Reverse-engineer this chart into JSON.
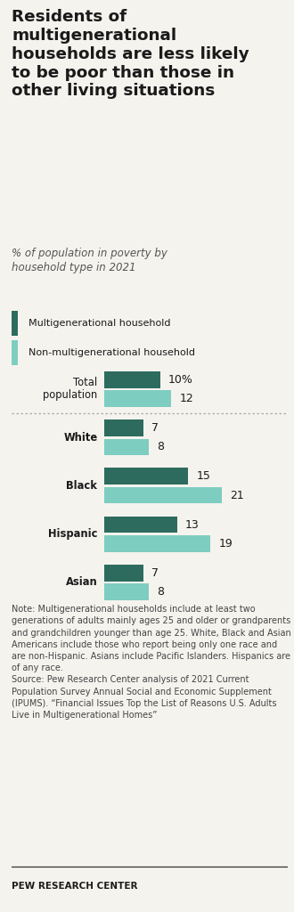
{
  "title": "Residents of\nmultigenerational\nhouseholds are less likely\nto be poor than those in\nother living situations",
  "subtitle": "% of population in poverty by\nhousehold type in 2021",
  "legend": [
    "Multigenerational household",
    "Non-multigenerational household"
  ],
  "color_multi": "#2d6b5e",
  "color_nonmulti": "#7ecdc1",
  "categories": [
    "Total\npopulation",
    "White",
    "Black",
    "Hispanic",
    "Asian"
  ],
  "multi_values": [
    10,
    7,
    15,
    13,
    7
  ],
  "nonmulti_values": [
    12,
    8,
    21,
    19,
    8
  ],
  "note_text": "Note: Multigenerational households include at least two generations of adults mainly ages 25 and older or grandparents and grandchildren younger than age 25. White, Black and Asian Americans include those who report being only one race and are non-Hispanic. Asians include Pacific Islanders. Hispanics are of any race.\nSource: Pew Research Center analysis of 2021 Current Population Survey Annual Social and Economic Supplement (IPUMS). “Financial Issues Top the List of Reasons U.S. Adults Live in Multigenerational Homes”",
  "footer": "PEW RESEARCH CENTER",
  "bg_color": "#f5f3ee",
  "color_multi_dark": "#2d6b5e",
  "color_nonmulti_light": "#7ecdc1"
}
